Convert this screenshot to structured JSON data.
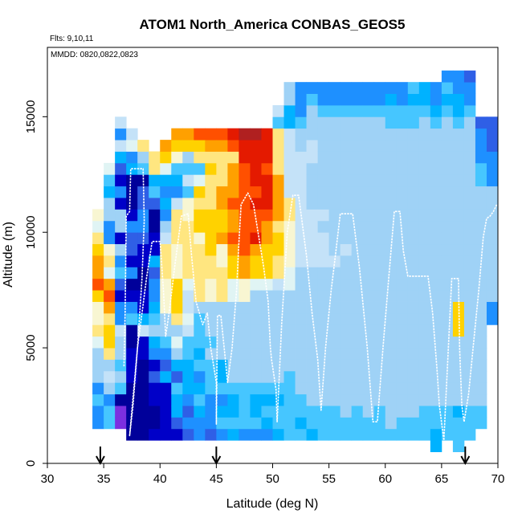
{
  "chart_data": {
    "type": "heatmap",
    "title": "ATOM1 North_America CONBAS_GEOS5",
    "annotations": {
      "flights": "Flts: 9,10,11",
      "dates": "MMDD: 0820,0822,0823"
    },
    "xlabel": "Latitude (deg N)",
    "ylabel": "Altitude (m)",
    "xlim": [
      30,
      70
    ],
    "ylim": [
      0,
      18000
    ],
    "x_ticks": [
      30,
      35,
      40,
      45,
      50,
      55,
      60,
      65,
      70
    ],
    "x_tick_labels": [
      "30",
      "35",
      "40",
      "45",
      "50",
      "55",
      "60",
      "65",
      "70"
    ],
    "y_ticks": [
      0,
      5000,
      10000,
      15000
    ],
    "y_tick_labels": [
      "0",
      "5000",
      "10000",
      "15000"
    ],
    "grid": false,
    "cell_size": {
      "lat_deg": 1,
      "alt_m": 500
    },
    "palette": {
      "N": "#00009a",
      "D": "#0000c8",
      "V": "#7b2fe0",
      "B": "#2f5fe6",
      "M": "#1e90ff",
      "C": "#00b2ff",
      "S": "#46c6ff",
      "L": "#9fd2f6",
      "P": "#c4e2f8",
      "Q": "#e0f4f4",
      "W": "#f8f6d2",
      "Y": "#ffe680",
      "G": "#ffd200",
      "O": "#ffa000",
      "R": "#ff5000",
      "E": "#e41a00",
      "K": "#b02020"
    },
    "columns": [
      {
        "lat": 34.5,
        "alt0": 1500,
        "cells": "MMSMLLLQYWWGROOGYQW"
      },
      {
        "lat": 35.5,
        "alt0": 1500,
        "cells": "SSMLPLYGGYOROQYWMMLLCSQ"
      },
      {
        "lat": 36.5,
        "alt0": 1500,
        "cells": "VVNSLSLLPMMDBSMLDLLDMDBCPMP"
      },
      {
        "lat": 37.5,
        "alt0": 1000,
        "cells": "NNNNNDDDNNSMDNMDBBMDNNNCMQP"
      },
      {
        "lat": 38.5,
        "alt0": 1000,
        "cells": "NNNNNNNDDPCDDNNDDBMMBBNSLY"
      },
      {
        "lat": 39.5,
        "alt0": 1000,
        "cells": "DNNDDBDMCLSCMMBCDDNNBSCYY"
      },
      {
        "lat": 40.5,
        "alt0": 1000,
        "cells": "DDDDDCBMSLLWWWYYYPLMCMCQGO"
      },
      {
        "lat": 41.5,
        "alt0": 1000,
        "cells": "DBCCSBCLQLYGGGWWWYYYPMCSWGO"
      },
      {
        "lat": 42.5,
        "alt0": 1000,
        "cells": "BMBMCCCSSPQPPQYYYYYWWSPSLGO"
      },
      {
        "lat": 43.5,
        "alt0": 1000,
        "cells": "MMCSCMSCSSSLYYYYYWGGYGQSYGR"
      },
      {
        "lat": 44.5,
        "alt0": 1000,
        "cells": "BMMMSSSLSLLLWWYYGGGGYYYGYOR"
      },
      {
        "lat": 45.5,
        "alt0": 1000,
        "cells": "MSCMSCCLLLLLYYYWWOGGOOYYYOR"
      },
      {
        "lat": 46.5,
        "alt0": 1000,
        "cells": "CSCCSLLLLLLLQQGGOROOROOOYRE"
      },
      {
        "lat": 47.5,
        "alt0": 1000,
        "cells": "MSSSSLLLLLLLWWOORRRRRRRREEK"
      },
      {
        "lat": 48.5,
        "alt0": 1000,
        "cells": "MSCCSLLLLLLLLQGGOERREREEEEK"
      },
      {
        "lat": 49.5,
        "alt0": 1000,
        "cells": "MCSCSLLLLLLLLQGGGOOREEEREEE"
      },
      {
        "lat": 50.5,
        "alt0": 1000,
        "cells": "CSSCSLLLLLLLLPYYGGYOOOOYYYYSP"
      },
      {
        "lat": 51.5,
        "alt0": 1000,
        "cells": "SSSSSSLLLLLLLQQWWWWYYPPPPPPCCLL"
      },
      {
        "lat": 52.5,
        "alt0": 1000,
        "cells": "SCSSLLLLLLLLLLLPPPPPPPPPPLLSMMM"
      },
      {
        "lat": 53.5,
        "alt0": 1000,
        "cells": "CSSLLLLLLLLLLLLPPPPPLLLLPPLLLSM"
      },
      {
        "lat": 54.5,
        "alt0": 1000,
        "cells": "SSSLLLLLLLLLLLLPPPLPLLLLLLLLSMM"
      },
      {
        "lat": 55.5,
        "alt0": 1000,
        "cells": "SSSLLLLLLLLLLLLPLLLLLLLLLLLLSMM"
      },
      {
        "lat": 56.5,
        "alt0": 1000,
        "cells": "SSLLLLLLLLLLLLLLPLLLLLLLLLLLSMM"
      },
      {
        "lat": 57.5,
        "alt0": 1000,
        "cells": "SSSLLLLLLLLLLLLLLLLLLLLLLLLLSMM"
      },
      {
        "lat": 58.5,
        "alt0": 1000,
        "cells": "SSLLLLLLLLLLLLLLLLLLLLLLLLLLSMM"
      },
      {
        "lat": 59.5,
        "alt0": 1000,
        "cells": "SSSLLLLLLLLLLLLLLLLLLLLLLLLLSMM"
      },
      {
        "lat": 60.5,
        "alt0": 1000,
        "cells": "SLLLLLLLLLLLLLLLLLLLLLLLLLLSSCM"
      },
      {
        "lat": 61.5,
        "alt0": 1000,
        "cells": "SSLLLLLLLLLLLLLLLLLLLLLLLLLSSMM"
      },
      {
        "lat": 62.5,
        "alt0": 1000,
        "cells": "SSLLLLLLLLLLLLLLLLLLLLLLLLLSSCS"
      },
      {
        "lat": 63.5,
        "alt0": 1000,
        "cells": "SSSLLLLLLLLLLLLLLLLLLLLLLLLLSCC"
      },
      {
        "lat": 64.5,
        "alt0": 500,
        "cells": "CCSSLLLLLLLLLLLLLLLLLLLLLLLLSCMM"
      },
      {
        "lat": 65.5,
        "alt0": 1000,
        "cells": "SSSLLLLLLLLLLLLLLLLLLLLLLLLLSCSM"
      },
      {
        "lat": 66.5,
        "alt0": 500,
        "cells": "SSSCLLLLLLGGGLLLLLLLLLLLLLLLSCCMM"
      },
      {
        "lat": 67.5,
        "alt0": 1000,
        "cells": "SSSLLLLLLLLLLLLLLLLLLLLLLLLLSMMB"
      },
      {
        "lat": 68.5,
        "alt0": 1500,
        "cells": "SSLLLLLLLLLLLLLLLLLLLSSMMMB"
      },
      {
        "lat": 69.5,
        "alt0": 6000,
        "cells": "MMLLLLLLLLLLMMMBBB"
      }
    ],
    "flight_track": {
      "color": "#ffffff",
      "points": [
        [
          36.8,
          4200
        ],
        [
          36.9,
          6500
        ],
        [
          37.0,
          10700
        ],
        [
          37.3,
          10900
        ],
        [
          37.4,
          12750
        ],
        [
          38.5,
          12750
        ],
        [
          38.6,
          10500
        ],
        [
          38.4,
          8000
        ],
        [
          38.0,
          5000
        ],
        [
          37.6,
          2500
        ],
        [
          37.3,
          1200
        ],
        [
          38.0,
          5000
        ],
        [
          38.8,
          8000
        ],
        [
          39.3,
          9600
        ],
        [
          40.0,
          9600
        ],
        [
          40.3,
          7500
        ],
        [
          40.5,
          5500
        ],
        [
          40.8,
          6500
        ],
        [
          41.3,
          8500
        ],
        [
          41.9,
          10700
        ],
        [
          42.5,
          10800
        ],
        [
          42.8,
          9000
        ],
        [
          43.2,
          7000
        ],
        [
          43.8,
          6000
        ],
        [
          44.2,
          6500
        ],
        [
          44.5,
          5000
        ],
        [
          45.0,
          3500
        ],
        [
          45.0,
          1700
        ],
        [
          45.1,
          6400
        ],
        [
          45.4,
          6400
        ],
        [
          45.8,
          4500
        ],
        [
          46.0,
          3500
        ],
        [
          46.4,
          5000
        ],
        [
          46.8,
          7500
        ],
        [
          47.0,
          9500
        ],
        [
          47.2,
          11200
        ],
        [
          47.8,
          11700
        ],
        [
          48.3,
          11200
        ],
        [
          48.5,
          10600
        ],
        [
          49.2,
          8500
        ],
        [
          49.6,
          7000
        ],
        [
          49.8,
          5000
        ],
        [
          49.9,
          4500
        ],
        [
          50.3,
          3200
        ],
        [
          50.4,
          1800
        ],
        [
          50.8,
          6000
        ],
        [
          51.3,
          10000
        ],
        [
          51.8,
          11600
        ],
        [
          52.3,
          11600
        ],
        [
          53.0,
          9000
        ],
        [
          53.5,
          6500
        ],
        [
          54.0,
          4500
        ],
        [
          54.3,
          2300
        ],
        [
          54.7,
          5000
        ],
        [
          55.2,
          7500
        ],
        [
          55.6,
          9100
        ],
        [
          56.0,
          10800
        ],
        [
          57.1,
          10800
        ],
        [
          57.7,
          8500
        ],
        [
          58.4,
          5000
        ],
        [
          58.9,
          1800
        ],
        [
          59.3,
          1800
        ],
        [
          59.8,
          5000
        ],
        [
          60.3,
          8000
        ],
        [
          60.8,
          10900
        ],
        [
          61.3,
          10900
        ],
        [
          61.6,
          9200
        ],
        [
          62.0,
          8100
        ],
        [
          63.8,
          8100
        ],
        [
          64.2,
          6500
        ],
        [
          64.6,
          4000
        ],
        [
          64.8,
          2500
        ],
        [
          65.2,
          1000
        ],
        [
          65.6,
          5000
        ],
        [
          65.9,
          8000
        ],
        [
          66.5,
          8000
        ],
        [
          66.6,
          5000
        ],
        [
          66.8,
          2500
        ],
        [
          67.0,
          1800
        ],
        [
          67.4,
          3000
        ],
        [
          67.8,
          5000
        ],
        [
          68.3,
          7500
        ],
        [
          68.7,
          9800
        ],
        [
          69.0,
          10600
        ],
        [
          69.3,
          10700
        ],
        [
          69.6,
          10900
        ],
        [
          69.9,
          11200
        ]
      ]
    },
    "markers": {
      "type": "down-arrow",
      "x": [
        34.7,
        45.0,
        67.1
      ]
    }
  }
}
